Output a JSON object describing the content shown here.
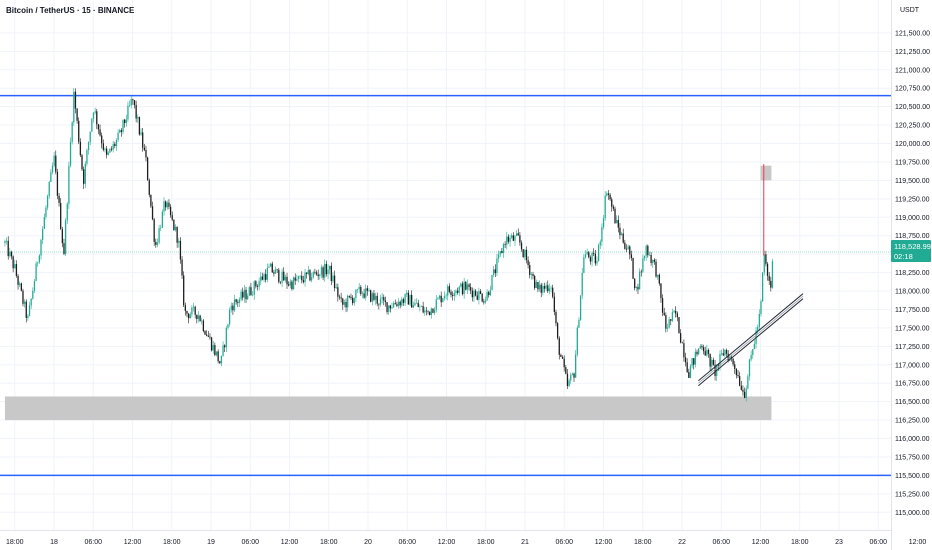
{
  "header": {
    "title": "Bitcoin / TetherUS · 15 · BINANCE",
    "currency": "USDT"
  },
  "last_price": {
    "value": "118,528.99",
    "countdown": "02:18"
  },
  "colors": {
    "up": "#22ab94",
    "down": "#1d1d1d",
    "levels": "#2962ff",
    "zones": "#c8c8c8",
    "last_line": "#7fd2c4",
    "wick_mark": "#f23645",
    "axis_text": "#131722",
    "grid": "#f0f3fa"
  },
  "chart_data": {
    "type": "candlestick",
    "title": "Bitcoin / TetherUS · 15 · BINANCE",
    "ylim": [
      114800,
      121750
    ],
    "y_ticks": [
      "121,500.00",
      "121,250.00",
      "121,000.00",
      "120,750.00",
      "120,500.00",
      "120,250.00",
      "120,000.00",
      "119,750.00",
      "119,500.00",
      "119,250.00",
      "119,000.00",
      "118,750.00",
      "118,500.00",
      "118,250.00",
      "118,000.00",
      "117,750.00",
      "117,500.00",
      "117,250.00",
      "117,000.00",
      "116,750.00",
      "116,500.00",
      "116,250.00",
      "116,000.00",
      "115,750.00",
      "115,500.00",
      "115,250.00",
      "115,000.00"
    ],
    "x_ticks": [
      "18:00",
      "18",
      "06:00",
      "12:00",
      "18:00",
      "19",
      "06:00",
      "12:00",
      "18:00",
      "20",
      "06:00",
      "12:00",
      "18:00",
      "21",
      "06:00",
      "12:00",
      "18:00",
      "22",
      "06:00",
      "12:00",
      "18:00",
      "23",
      "06:00",
      "12:00"
    ],
    "levels": [
      120650,
      115500
    ],
    "zones": [
      {
        "from": "22 12:00",
        "to": "22 13:40",
        "low": 119500,
        "high": 119700
      },
      {
        "from": "17 16:30",
        "to": "22 13:40",
        "low": 116250,
        "high": 116570
      }
    ],
    "last_price": 118528.99,
    "wick_mark": {
      "x": "22 12:30",
      "low": 118480,
      "high": 119720
    },
    "trendline": [
      {
        "x": "22 02:30",
        "y": 116750
      },
      {
        "x": "22 18:30",
        "y": 117930
      }
    ],
    "keypoints": [
      [
        "17 16:30",
        118650
      ],
      [
        "17 18:00",
        118300
      ],
      [
        "17 20:00",
        117600
      ],
      [
        "17 22:00",
        118700
      ],
      [
        "18 00:00",
        119800
      ],
      [
        "18 01:30",
        118500
      ],
      [
        "18 03:00",
        120700
      ],
      [
        "18 04:30",
        119500
      ],
      [
        "18 06:00",
        120500
      ],
      [
        "18 08:00",
        119800
      ],
      [
        "18 10:00",
        120100
      ],
      [
        "18 12:00",
        120600
      ],
      [
        "18 14:00",
        119800
      ],
      [
        "18 15:30",
        118600
      ],
      [
        "18 17:00",
        119200
      ],
      [
        "18 19:00",
        118700
      ],
      [
        "18 20:00",
        117700
      ],
      [
        "18 22:00",
        117700
      ],
      [
        "19 00:00",
        117300
      ],
      [
        "19 01:30",
        117000
      ],
      [
        "19 03:00",
        117800
      ],
      [
        "19 06:00",
        118000
      ],
      [
        "19 09:00",
        118300
      ],
      [
        "19 12:00",
        118100
      ],
      [
        "19 15:00",
        118200
      ],
      [
        "19 18:00",
        118300
      ],
      [
        "19 20:00",
        117800
      ],
      [
        "19 23:00",
        118000
      ],
      [
        "20 03:00",
        117800
      ],
      [
        "20 06:00",
        117900
      ],
      [
        "20 09:00",
        117700
      ],
      [
        "20 12:00",
        118000
      ],
      [
        "20 15:00",
        118050
      ],
      [
        "20 18:00",
        117900
      ],
      [
        "20 21:00",
        118700
      ],
      [
        "20 23:00",
        118700
      ],
      [
        "21 02:00",
        118000
      ],
      [
        "21 04:00",
        118100
      ],
      [
        "21 05:00",
        117300
      ],
      [
        "21 06:30",
        116700
      ],
      [
        "21 07:30",
        116900
      ],
      [
        "21 09:00",
        118500
      ],
      [
        "21 11:00",
        118400
      ],
      [
        "21 12:30",
        119400
      ],
      [
        "21 14:00",
        118900
      ],
      [
        "21 16:00",
        118500
      ],
      [
        "21 17:00",
        118000
      ],
      [
        "21 18:30",
        118600
      ],
      [
        "21 20:00",
        118300
      ],
      [
        "21 21:30",
        117500
      ],
      [
        "21 23:00",
        117700
      ],
      [
        "22 01:00",
        116900
      ],
      [
        "22 03:00",
        117300
      ],
      [
        "22 05:00",
        116900
      ],
      [
        "22 06:30",
        117200
      ],
      [
        "22 08:00",
        117000
      ],
      [
        "22 09:30",
        116600
      ],
      [
        "22 11:00",
        117300
      ],
      [
        "22 12:00",
        117700
      ],
      [
        "22 12:30",
        118500
      ],
      [
        "22 13:30",
        118000
      ],
      [
        "22 14:00",
        118530
      ]
    ]
  }
}
